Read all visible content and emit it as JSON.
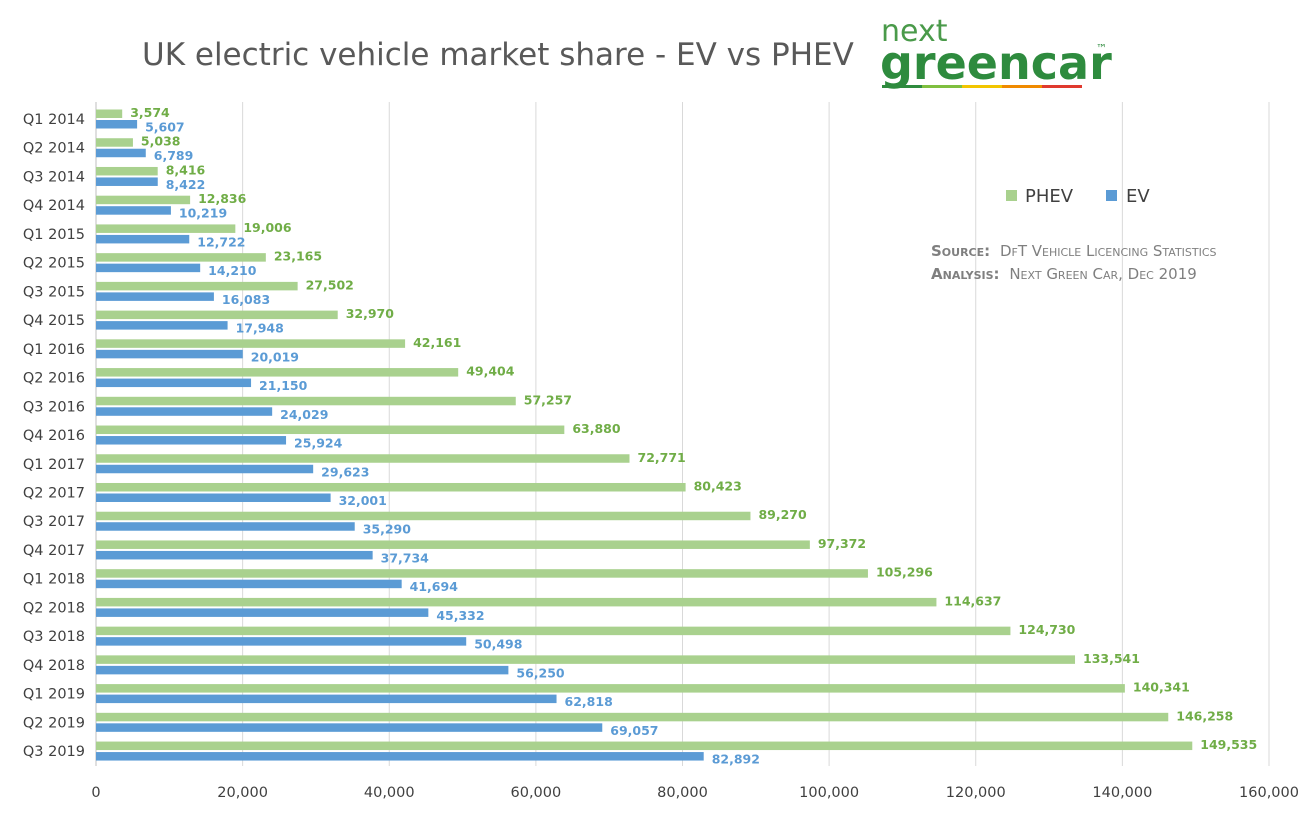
{
  "page_title": "UK electric vehicle market share - EV vs PHEV",
  "logo": {
    "line1": "next",
    "line2": "greencar",
    "tm": "™",
    "stripe_colors": [
      "#2e8b3e",
      "#7fbf3f",
      "#f2c500",
      "#f08a00",
      "#e03a2f"
    ]
  },
  "source": {
    "source_key": "Source:",
    "source_value": "DfT Vehicle Licencing Statistics",
    "analysis_key": "Analysis:",
    "analysis_value": "Next Green Car, Dec 2019"
  },
  "colors": {
    "phev": "#a9d18e",
    "ev": "#5b9bd5",
    "phev_label": "#70ad47",
    "ev_label": "#5b9bd5",
    "grid": "#d9d9d9"
  },
  "chart_data": {
    "type": "bar",
    "orientation": "horizontal",
    "title": "UK electric vehicle market share - EV vs PHEV",
    "categories": [
      "Q1 2014",
      "Q2 2014",
      "Q3 2014",
      "Q4 2014",
      "Q1 2015",
      "Q2 2015",
      "Q3 2015",
      "Q4 2015",
      "Q1 2016",
      "Q2 2016",
      "Q3 2016",
      "Q4 2016",
      "Q1 2017",
      "Q2 2017",
      "Q3 2017",
      "Q4 2017",
      "Q1 2018",
      "Q2 2018",
      "Q3 2018",
      "Q4 2018",
      "Q1 2019",
      "Q2 2019",
      "Q3 2019"
    ],
    "series": [
      {
        "name": "PHEV",
        "values": [
          3574,
          5038,
          8416,
          12836,
          19006,
          23165,
          27502,
          32970,
          42161,
          49404,
          57257,
          63880,
          72771,
          80423,
          89270,
          97372,
          105296,
          114637,
          124730,
          133541,
          140341,
          146258,
          149535
        ],
        "labels": [
          "3,574",
          "5,038",
          "8,416",
          "12,836",
          "19,006",
          "23,165",
          "27,502",
          "32,970",
          "42,161",
          "49,404",
          "57,257",
          "63,880",
          "72,771",
          "80,423",
          "89,270",
          "97,372",
          "105,296",
          "114,637",
          "124,730",
          "133,541",
          "140,341",
          "146,258",
          "149,535"
        ]
      },
      {
        "name": "EV",
        "values": [
          5607,
          6789,
          8422,
          10219,
          12722,
          14210,
          16083,
          17948,
          20019,
          21150,
          24029,
          25924,
          29623,
          32001,
          35290,
          37734,
          41694,
          45332,
          50498,
          56250,
          62818,
          69057,
          82892
        ],
        "labels": [
          "5,607",
          "6,789",
          "8,422",
          "10,219",
          "12,722",
          "14,210",
          "16,083",
          "17,948",
          "20,019",
          "21,150",
          "24,029",
          "25,924",
          "29,623",
          "32,001",
          "35,290",
          "37,734",
          "41,694",
          "45,332",
          "50,498",
          "56,250",
          "62,818",
          "69,057",
          "82,892"
        ]
      }
    ],
    "xlim": [
      0,
      160000
    ],
    "xticks": [
      0,
      20000,
      40000,
      60000,
      80000,
      100000,
      120000,
      140000,
      160000
    ],
    "xtick_labels": [
      "0",
      "20,000",
      "40,000",
      "60,000",
      "80,000",
      "100,000",
      "120,000",
      "140,000",
      "160,000"
    ],
    "grid": true,
    "legend_position": "top-right",
    "xlabel": "",
    "ylabel": ""
  }
}
